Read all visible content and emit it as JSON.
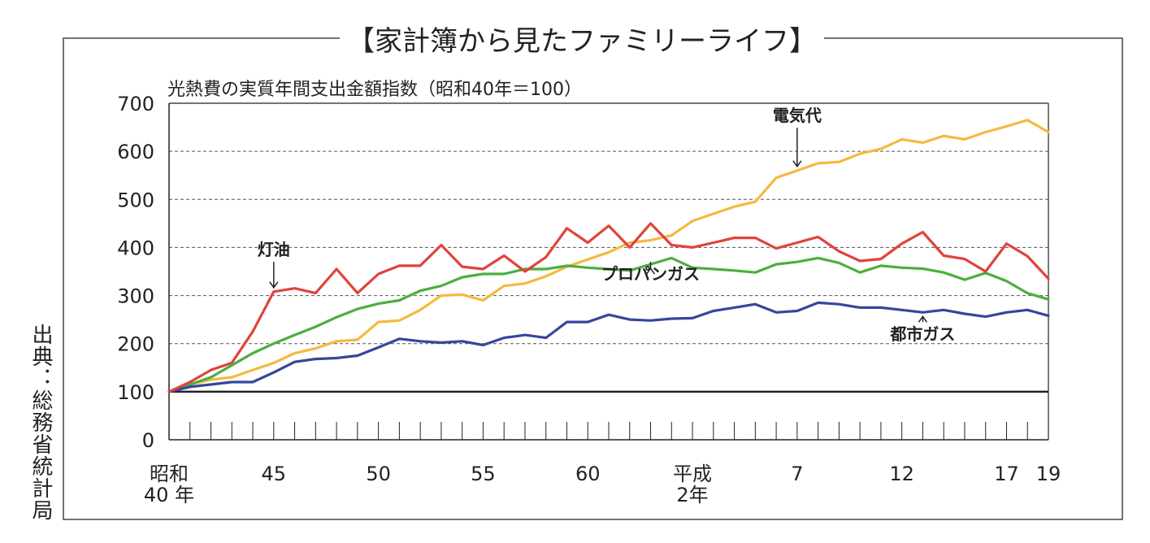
{
  "header": {
    "frame_title": "【家計簿から見たファミリーライフ】",
    "source_label": "出典：総務省統計局"
  },
  "chart_data": {
    "type": "line",
    "title": "光熱費の実質年間支出金額指数（昭和40年＝100）",
    "xlabel": "",
    "ylabel": "",
    "ylim": [
      0,
      700
    ],
    "y_ticks": [
      0,
      100,
      200,
      300,
      400,
      500,
      600,
      700
    ],
    "grid": "dashed-horizontal",
    "x": [
      1965,
      1966,
      1967,
      1968,
      1969,
      1970,
      1971,
      1972,
      1973,
      1974,
      1975,
      1976,
      1977,
      1978,
      1979,
      1980,
      1981,
      1982,
      1983,
      1984,
      1985,
      1986,
      1987,
      1988,
      1989,
      1990,
      1991,
      1992,
      1993,
      1994,
      1995,
      1996,
      1997,
      1998,
      1999,
      2000,
      2001,
      2002,
      2003,
      2004,
      2005,
      2006,
      2007
    ],
    "x_tick_labels": [
      {
        "x": 1965,
        "lines": [
          "昭和",
          "40 年"
        ]
      },
      {
        "x": 1970,
        "lines": [
          "45"
        ]
      },
      {
        "x": 1975,
        "lines": [
          "50"
        ]
      },
      {
        "x": 1980,
        "lines": [
          "55"
        ]
      },
      {
        "x": 1985,
        "lines": [
          "60"
        ]
      },
      {
        "x": 1990,
        "lines": [
          "平成",
          "2年"
        ]
      },
      {
        "x": 1995,
        "lines": [
          "7"
        ]
      },
      {
        "x": 2000,
        "lines": [
          "12"
        ]
      },
      {
        "x": 2005,
        "lines": [
          "17"
        ]
      },
      {
        "x": 2007,
        "lines": [
          "19"
        ]
      }
    ],
    "series": [
      {
        "name": "電気代",
        "color": "#f5b940",
        "values": [
          100,
          115,
          125,
          130,
          145,
          160,
          180,
          190,
          205,
          208,
          245,
          248,
          270,
          300,
          302,
          290,
          320,
          325,
          340,
          360,
          375,
          390,
          410,
          415,
          425,
          455,
          470,
          485,
          495,
          545,
          560,
          575,
          578,
          595,
          605,
          625,
          618,
          632,
          625,
          640,
          652,
          665,
          640
        ],
        "annotation": {
          "x": 1995,
          "y": 622
        }
      },
      {
        "name": "灯油",
        "color": "#e0433b",
        "values": [
          100,
          120,
          145,
          160,
          225,
          308,
          315,
          305,
          355,
          305,
          345,
          362,
          362,
          405,
          360,
          355,
          383,
          350,
          380,
          440,
          410,
          445,
          400,
          450,
          405,
          400,
          410,
          420,
          420,
          398,
          410,
          422,
          392,
          372,
          376,
          408,
          432,
          383,
          376,
          350,
          408,
          382,
          335
        ],
        "annotation": {
          "x": 1970,
          "y": 343
        }
      },
      {
        "name": "プロパンガス",
        "color": "#4cae3f",
        "values": [
          100,
          115,
          130,
          155,
          180,
          200,
          218,
          235,
          255,
          272,
          283,
          290,
          310,
          320,
          338,
          345,
          345,
          355,
          355,
          362,
          358,
          355,
          352,
          365,
          378,
          358,
          355,
          352,
          348,
          365,
          370,
          378,
          368,
          348,
          362,
          358,
          356,
          348,
          333,
          347,
          330,
          305,
          292
        ],
        "annotation": {
          "x": 1988,
          "y": 350
        }
      },
      {
        "name": "都市ガス",
        "color": "#35479b",
        "values": [
          100,
          110,
          115,
          120,
          120,
          140,
          162,
          168,
          170,
          175,
          192,
          210,
          205,
          202,
          205,
          197,
          212,
          218,
          212,
          245,
          245,
          260,
          250,
          248,
          252,
          253,
          268,
          275,
          282,
          265,
          268,
          285,
          282,
          275,
          275,
          270,
          265,
          270,
          262,
          256,
          265,
          270,
          258
        ],
        "annotation": {
          "x": 2001,
          "y": 225
        }
      }
    ]
  }
}
